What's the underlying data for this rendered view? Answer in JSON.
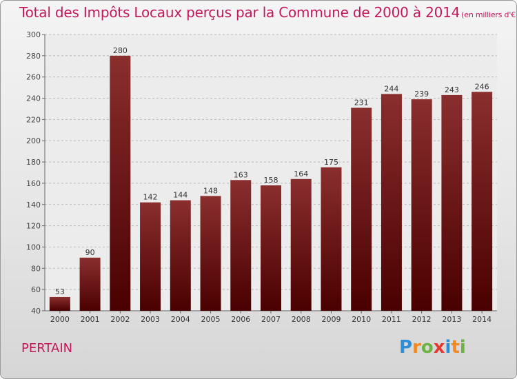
{
  "header": {
    "title": "Total des Impôts Locaux perçus par la Commune de 2000 à 2014",
    "subtitle": "(en milliers d'€)"
  },
  "footer": {
    "commune": "PERTAIN",
    "brand": "Proxiti"
  },
  "colors": {
    "title": "#c2185b",
    "bar_top": "#8a2e2e",
    "bar_bottom": "#4a0000",
    "brand_letters": [
      "#2e8fd6",
      "#f08a24",
      "#6ab344",
      "#e23a2e",
      "#2e8fd6",
      "#f08a24",
      "#6ab344"
    ]
  },
  "chart_data": {
    "type": "bar",
    "categories": [
      "2000",
      "2001",
      "2002",
      "2003",
      "2004",
      "2005",
      "2006",
      "2007",
      "2008",
      "2009",
      "2010",
      "2011",
      "2012",
      "2013",
      "2014"
    ],
    "values": [
      53,
      90,
      280,
      142,
      144,
      148,
      163,
      158,
      164,
      175,
      231,
      244,
      239,
      243,
      246
    ],
    "ylim": [
      40,
      300
    ],
    "yticks": [
      40,
      60,
      80,
      100,
      120,
      140,
      160,
      180,
      200,
      220,
      240,
      260,
      280,
      300
    ],
    "grid": true,
    "data_labels": true
  }
}
